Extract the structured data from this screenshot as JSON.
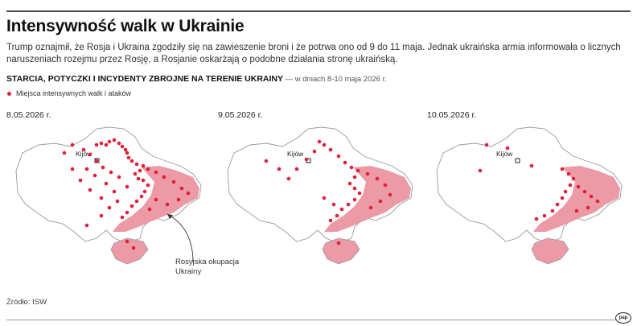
{
  "title": "Intensywność walk w Ukrainie",
  "lead": "Trump oznajmił, że Rosja i Ukraina zgodziły się na zawieszenie broni i że potrwa ono od 9 do 11 maja. Jednak ukraińska armia informowała o licznych naruszeniach rozejmu przez Rosję, a Rosjanie oskarżają o podobne działania stronę ukraińską.",
  "subhead": {
    "main": "STARCIA, POTYCZKI I INCYDENTY ZBROJNE NA TERENIE UKRAINY",
    "sub": " — w dniach 8-10 maja 2026 r."
  },
  "legend": {
    "label": "Miejsca intensywnych walk i ataków"
  },
  "colors": {
    "attack_dot": "#e0203c",
    "occupation": "#ec9aa5",
    "land": "#ffffff",
    "border": "#9a9a9a"
  },
  "capital_label": "Kijów",
  "annotation": {
    "line1": "Rosyjska okupacja",
    "line2": "Ukrainy"
  },
  "maps": [
    {
      "date": "8.05.2026 r."
    },
    {
      "date": "9.05.2026 r."
    },
    {
      "date": "10.05.2026 r."
    }
  ],
  "source": "Źródło: ISW",
  "logo_text": "pap"
}
